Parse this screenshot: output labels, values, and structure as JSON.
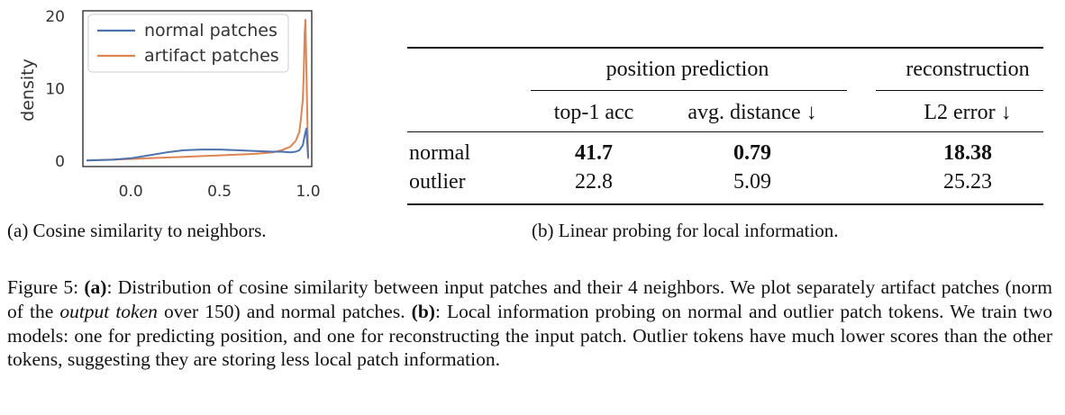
{
  "chart_data": {
    "type": "line",
    "title": "",
    "xlabel": "",
    "ylabel": "density",
    "xlim": [
      -0.25,
      1.0
    ],
    "ylim": [
      0,
      20
    ],
    "x_ticks": [
      "0.0",
      "0.5",
      "1.0"
    ],
    "y_ticks": [
      "0",
      "10",
      "20"
    ],
    "legend_position": "top-left",
    "grid": false,
    "series": [
      {
        "name": "normal patches",
        "color": "#4c72b0",
        "x": [
          -0.25,
          -0.1,
          0.0,
          0.1,
          0.2,
          0.3,
          0.4,
          0.5,
          0.6,
          0.7,
          0.8,
          0.85,
          0.9,
          0.93,
          0.95,
          0.97,
          0.98,
          0.99,
          1.0
        ],
        "y": [
          0.1,
          0.2,
          0.4,
          0.8,
          1.2,
          1.5,
          1.6,
          1.6,
          1.5,
          1.4,
          1.3,
          1.3,
          1.2,
          1.3,
          1.5,
          2.2,
          3.5,
          4.5,
          0.5
        ]
      },
      {
        "name": "artifact patches",
        "color": "#dd8452",
        "x": [
          -0.25,
          0.0,
          0.1,
          0.2,
          0.3,
          0.4,
          0.5,
          0.6,
          0.7,
          0.8,
          0.85,
          0.9,
          0.93,
          0.95,
          0.96,
          0.97,
          0.975,
          0.98,
          0.985,
          0.99,
          1.0
        ],
        "y": [
          0.1,
          0.3,
          0.4,
          0.5,
          0.6,
          0.7,
          0.8,
          0.9,
          1.0,
          1.2,
          1.5,
          2.0,
          2.8,
          4.0,
          6.0,
          8.5,
          12.0,
          17.5,
          19.5,
          13.0,
          0.3
        ]
      }
    ]
  },
  "captions": {
    "a": "(a) Cosine similarity to neighbors.",
    "b": "(b) Linear probing for local information."
  },
  "table": {
    "group_headers": [
      "position prediction",
      "reconstruction"
    ],
    "columns": [
      "top-1 acc",
      "avg. distance ↓",
      "L2 error ↓"
    ],
    "rows": [
      {
        "label": "normal",
        "values": [
          "41.7",
          "0.79",
          "18.38"
        ],
        "bold": true
      },
      {
        "label": "outlier",
        "values": [
          "22.8",
          "5.09",
          "25.23"
        ],
        "bold": false
      }
    ]
  },
  "figure_caption": {
    "label": "Figure 5: ",
    "a_marker": "(a)",
    "part1": ": Distribution of cosine similarity between input patches and their 4 neighbors. We plot separately artifact patches (norm of the ",
    "italic": "output token",
    "part2": " over 150) and normal patches. ",
    "b_marker": "(b)",
    "part3": ": Local information probing on normal and outlier patch tokens. We train two models: one for predicting position, and one for reconstructing the input patch. Outlier tokens have much lower scores than the other tokens, suggesting they are storing less local patch information."
  }
}
